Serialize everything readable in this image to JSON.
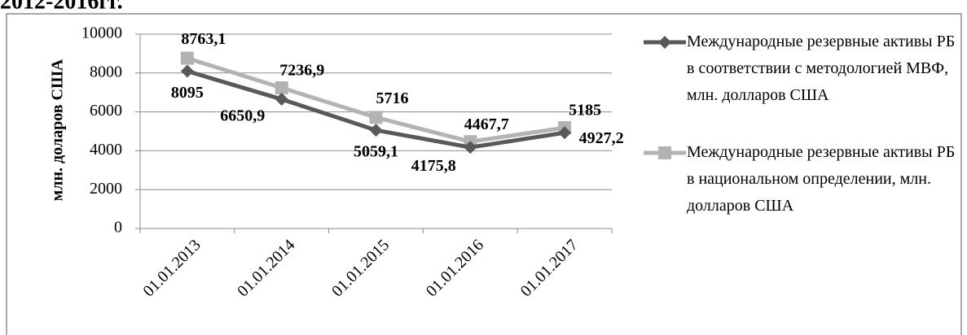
{
  "heading": "2012-2016гг.",
  "chart_data": {
    "type": "line",
    "y_label": "млн. доларов США",
    "categories": [
      "01.01.2013",
      "01.01.2014",
      "01.01.2015",
      "01.01.2016",
      "01.01.2017"
    ],
    "series": [
      {
        "name": "Международные резервные активы РБ в соответствии с методологией МВФ, млн. долларов США",
        "color": "#595959",
        "marker": "diamond",
        "values": [
          8095,
          6650.9,
          5059.1,
          4175.8,
          4927.2
        ],
        "value_labels": [
          "8095",
          "6650,9",
          "5059,1",
          "4175,8",
          "4927,2"
        ]
      },
      {
        "name": "Международные резервные активы РБ в национальном определении, млн. долларов США",
        "color": "#b3b3b3",
        "marker": "square",
        "values": [
          8763.1,
          7236.9,
          5716,
          4467.7,
          5185
        ],
        "value_labels": [
          "8763,1",
          "7236,9",
          "5716",
          "4467,7",
          "5185"
        ]
      }
    ],
    "ylim": [
      0,
      10000
    ],
    "yticks": [
      0,
      2000,
      4000,
      6000,
      8000,
      10000
    ],
    "grid": true,
    "legend": "right"
  }
}
